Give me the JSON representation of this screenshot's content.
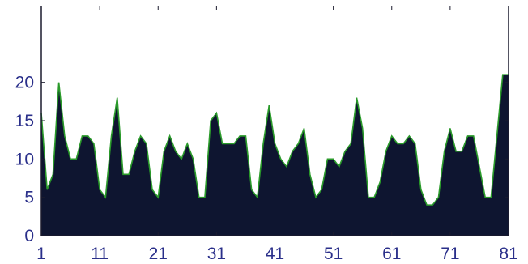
{
  "chart_data": {
    "type": "area",
    "title": "",
    "xlabel": "",
    "ylabel": "",
    "x": [
      1,
      2,
      3,
      4,
      5,
      6,
      7,
      8,
      9,
      10,
      11,
      12,
      13,
      14,
      15,
      16,
      17,
      18,
      19,
      20,
      21,
      22,
      23,
      24,
      25,
      26,
      27,
      28,
      29,
      30,
      31,
      32,
      33,
      34,
      35,
      36,
      37,
      38,
      39,
      40,
      41,
      42,
      43,
      44,
      45,
      46,
      47,
      48,
      49,
      50,
      51,
      52,
      53,
      54,
      55,
      56,
      57,
      58,
      59,
      60,
      61,
      62,
      63,
      64,
      65,
      66,
      67,
      68,
      69,
      70,
      71,
      72,
      73,
      74,
      75,
      76,
      77,
      78,
      79,
      80,
      81
    ],
    "values": [
      16,
      6,
      8,
      20,
      13,
      10,
      10,
      13,
      13,
      12,
      6,
      5,
      13,
      18,
      8,
      8,
      11,
      13,
      12,
      6,
      5,
      11,
      13,
      11,
      10,
      12,
      10,
      5,
      5,
      15,
      16,
      12,
      12,
      12,
      13,
      13,
      6,
      5,
      12,
      17,
      12,
      10,
      9,
      11,
      12,
      14,
      8,
      5,
      6,
      10,
      10,
      9,
      11,
      12,
      18,
      14,
      5,
      5,
      7,
      11,
      13,
      12,
      12,
      13,
      12,
      6,
      4,
      4,
      5,
      11,
      14,
      11,
      11,
      13,
      13,
      9,
      5,
      5,
      13,
      21,
      21
    ],
    "xlim": [
      1,
      81
    ],
    "ylim": [
      0,
      30
    ],
    "xticks": [
      1,
      11,
      21,
      31,
      41,
      51,
      61,
      71,
      81
    ],
    "yticks": [
      0,
      5,
      10,
      15,
      20
    ],
    "fill_color": "#0e1530",
    "edge_color": "#2a9a2a",
    "tick_label_color": "#2a2f8a",
    "grid": false,
    "legend": "none"
  }
}
